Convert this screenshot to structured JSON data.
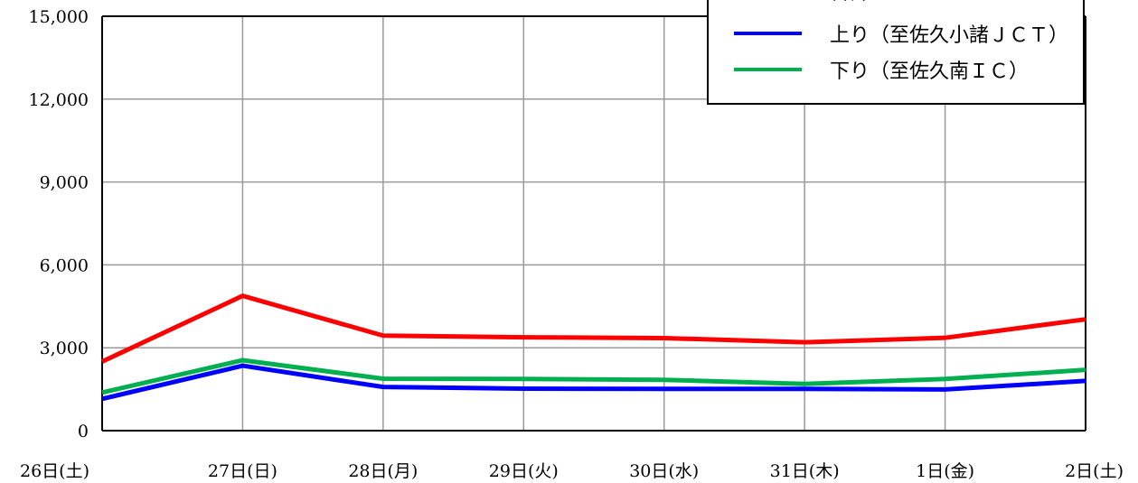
{
  "chart_data": {
    "type": "line",
    "categories": [
      "26日(土)",
      "27日(日)",
      "28日(月)",
      "29日(火)",
      "30日(水)",
      "31日(木)",
      "1日(金)",
      "2日(土)"
    ],
    "ylim": [
      0,
      15000
    ],
    "yticks": [
      "0",
      "3,000",
      "6,000",
      "9,000",
      "12,000",
      "15,000"
    ],
    "ytick_values": [
      0,
      3000,
      6000,
      9000,
      12000,
      15000
    ],
    "grid": true,
    "legend_position": "top-right",
    "series": [
      {
        "name": "合計",
        "color": "#ff0000",
        "values": [
          2500,
          4880,
          3440,
          3380,
          3350,
          3200,
          3360,
          4030
        ]
      },
      {
        "name": "上り（至佐久小諸ＪＣＴ）",
        "color": "#0000ff",
        "values": [
          1150,
          2350,
          1580,
          1520,
          1510,
          1510,
          1490,
          1800
        ]
      },
      {
        "name": "下り（至佐久南ＩＣ）",
        "color": "#00b050",
        "values": [
          1380,
          2550,
          1880,
          1870,
          1840,
          1690,
          1870,
          2200
        ]
      }
    ]
  }
}
